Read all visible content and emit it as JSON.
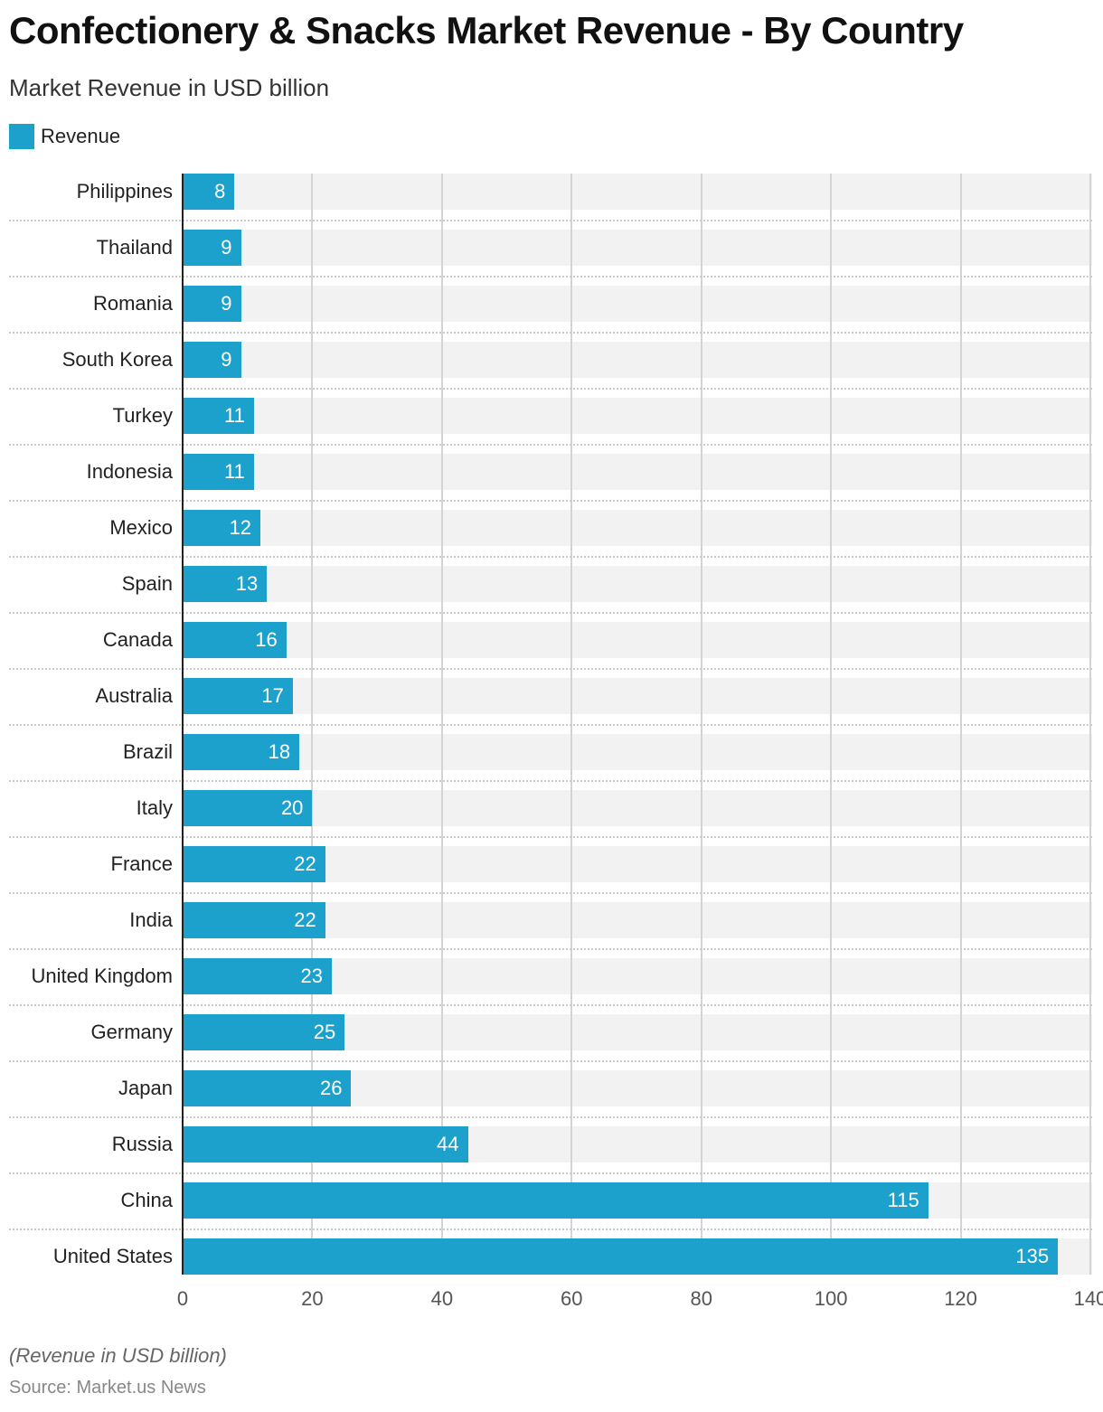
{
  "chart_data": {
    "type": "bar",
    "orientation": "horizontal",
    "title": "Confectionery & Snacks Market Revenue - By Country",
    "subtitle": "Market Revenue in USD billion",
    "legend": [
      {
        "name": "Revenue",
        "color": "#1ba1cc"
      }
    ],
    "legend_placement": "top-left",
    "categories": [
      "Philippines",
      "Thailand",
      "Romania",
      "South Korea",
      "Turkey",
      "Indonesia",
      "Mexico",
      "Spain",
      "Canada",
      "Australia",
      "Brazil",
      "Italy",
      "France",
      "India",
      "United Kingdom",
      "Germany",
      "Japan",
      "Russia",
      "China",
      "United States"
    ],
    "series": [
      {
        "name": "Revenue",
        "values": [
          8,
          9,
          9,
          9,
          11,
          11,
          12,
          13,
          16,
          17,
          18,
          20,
          22,
          22,
          23,
          25,
          26,
          44,
          115,
          135
        ]
      }
    ],
    "xlim": [
      0,
      140
    ],
    "xticks": [
      "0",
      "20",
      "40",
      "60",
      "80",
      "100",
      "120",
      "140"
    ],
    "grid": true,
    "note": "(Revenue in USD billion)",
    "source": "Source: Market.us News"
  }
}
